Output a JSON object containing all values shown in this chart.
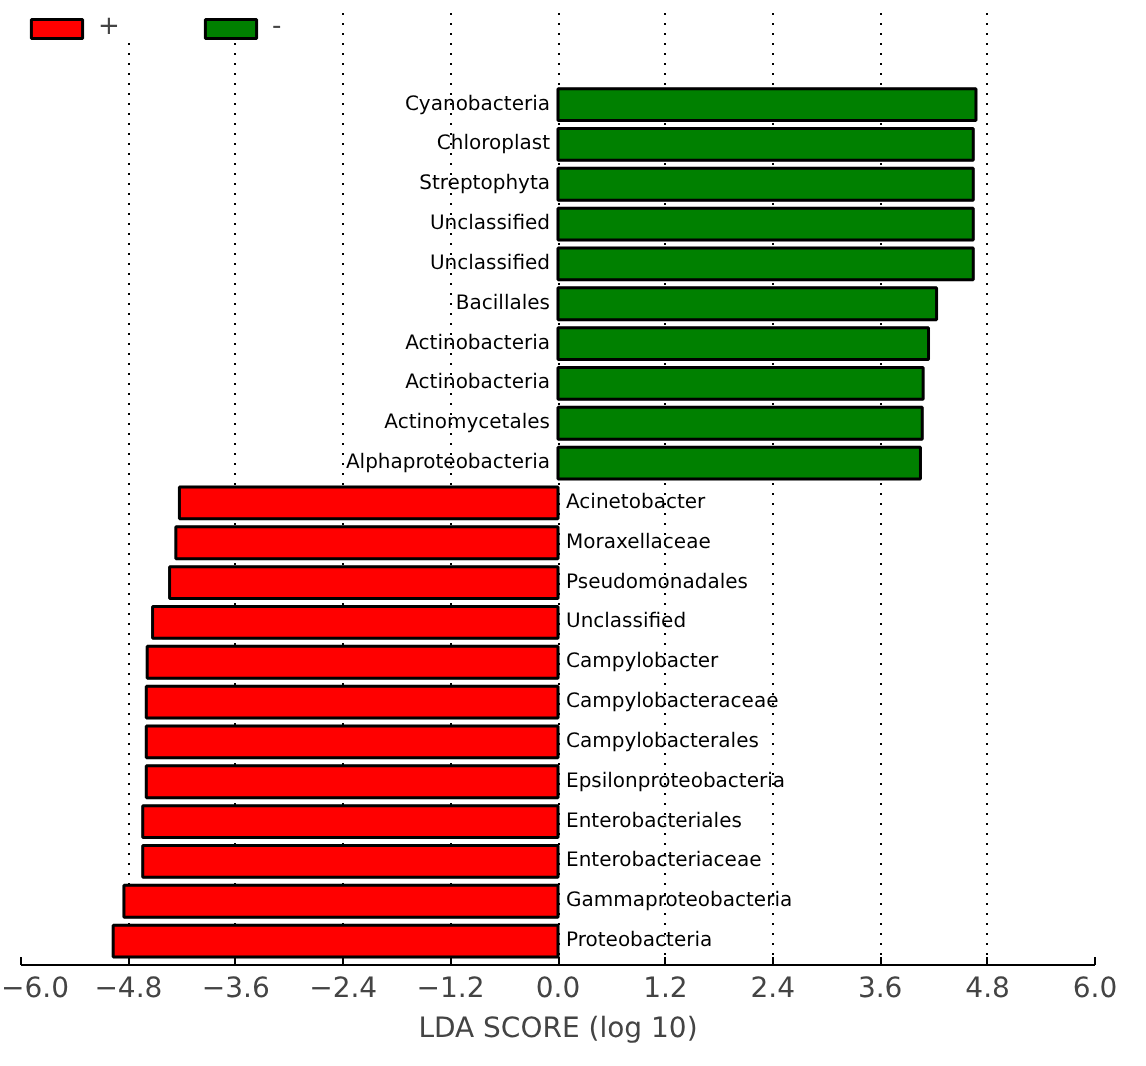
{
  "chart_data": {
    "type": "bar",
    "orientation": "horizontal",
    "xlabel": "LDA SCORE (log 10)",
    "categories": [
      "Cyanobacteria",
      "Chloroplast",
      "Streptophyta",
      "Unclassified",
      "Unclassified",
      "Bacillales",
      "Actinobacteria",
      "Actinobacteria",
      "Actinomycetales",
      "Alphaproteobacteria",
      "Acinetobacter",
      "Moraxellaceae",
      "Pseudomonadales",
      "Unclassified",
      "Campylobacter",
      "Campylobacteraceae",
      "Campylobacterales",
      "Epsilonproteobacteria",
      "Enterobacteriales",
      "Enterobacteriaceae",
      "Gammaproteobacteria",
      "Proteobacteria"
    ],
    "series": [
      {
        "name": "+",
        "color": "#ff0000",
        "values": [
          null,
          null,
          null,
          null,
          null,
          null,
          null,
          null,
          null,
          null,
          -4.23,
          -4.27,
          -4.34,
          -4.53,
          -4.59,
          -4.6,
          -4.6,
          -4.6,
          -4.64,
          -4.64,
          -4.85,
          -4.97
        ]
      },
      {
        "name": "-",
        "color": "#008000",
        "values": [
          4.67,
          4.64,
          4.64,
          4.64,
          4.64,
          4.23,
          4.14,
          4.08,
          4.07,
          4.05,
          null,
          null,
          null,
          null,
          null,
          null,
          null,
          null,
          null,
          null,
          null,
          null
        ]
      }
    ],
    "xlim": [
      -6,
      6
    ],
    "xticks": [
      {
        "value": -6,
        "label": "−6.0"
      },
      {
        "value": -4.8,
        "label": "−4.8"
      },
      {
        "value": -3.6,
        "label": "−3.6"
      },
      {
        "value": -2.4,
        "label": "−2.4"
      },
      {
        "value": -1.2,
        "label": "−1.2"
      },
      {
        "value": 0,
        "label": "0.0"
      },
      {
        "value": 1.2,
        "label": "1.2"
      },
      {
        "value": 2.4,
        "label": "2.4"
      },
      {
        "value": 3.6,
        "label": "3.6"
      },
      {
        "value": 4.8,
        "label": "4.8"
      },
      {
        "value": 6,
        "label": "6.0"
      }
    ],
    "grid": "x",
    "legend": "top left",
    "tick_labels": "x"
  }
}
